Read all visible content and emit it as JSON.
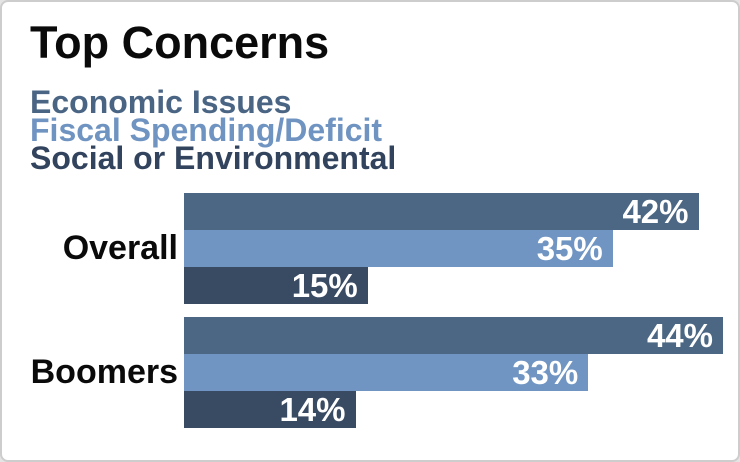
{
  "title": "Top Concerns",
  "legend": {
    "items": [
      {
        "label": "Economic Issues",
        "color": "#4A6584"
      },
      {
        "label": "Fiscal Spending/Deficit",
        "color": "#6F94C1"
      },
      {
        "label": "Social or Environmental",
        "color": "#32435E"
      }
    ]
  },
  "chart_data": {
    "type": "bar",
    "orientation": "horizontal",
    "title": "Top Concerns",
    "categories": [
      "Overall",
      "Boomers"
    ],
    "series": [
      {
        "name": "Economic Issues",
        "color": "#4C6783",
        "values": [
          42,
          44
        ]
      },
      {
        "name": "Fiscal Spending/Deficit",
        "color": "#7095C2",
        "values": [
          35,
          33
        ]
      },
      {
        "name": "Social or Environmental",
        "color": "#394A63",
        "values": [
          15,
          14
        ]
      }
    ],
    "value_suffix": "%",
    "xlim": [
      0,
      45
    ],
    "grid": false,
    "legend_position": "top-left",
    "data_labels": "inside-end",
    "data_label_color": "#ffffff"
  }
}
